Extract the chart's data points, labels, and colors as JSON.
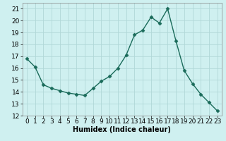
{
  "x": [
    0,
    1,
    2,
    3,
    4,
    5,
    6,
    7,
    8,
    9,
    10,
    11,
    12,
    13,
    14,
    15,
    16,
    17,
    18,
    19,
    20,
    21,
    22,
    23
  ],
  "y": [
    16.8,
    16.1,
    14.6,
    14.3,
    14.1,
    13.9,
    13.8,
    13.7,
    14.3,
    14.9,
    15.3,
    16.0,
    17.1,
    18.8,
    19.2,
    20.3,
    19.8,
    21.0,
    18.3,
    15.8,
    14.7,
    13.8,
    13.1,
    12.4
  ],
  "line_color": "#1a6b5a",
  "marker": "D",
  "marker_size": 2.5,
  "bg_color": "#cff0f0",
  "grid_color": "#b0d8d8",
  "xlabel": "Humidex (Indice chaleur)",
  "xlim": [
    -0.5,
    23.5
  ],
  "ylim": [
    12,
    21.5
  ],
  "yticks": [
    12,
    13,
    14,
    15,
    16,
    17,
    18,
    19,
    20,
    21
  ],
  "xticks": [
    0,
    1,
    2,
    3,
    4,
    5,
    6,
    7,
    8,
    9,
    10,
    11,
    12,
    13,
    14,
    15,
    16,
    17,
    18,
    19,
    20,
    21,
    22,
    23
  ],
  "xlabel_fontsize": 7,
  "tick_fontsize": 6.5
}
